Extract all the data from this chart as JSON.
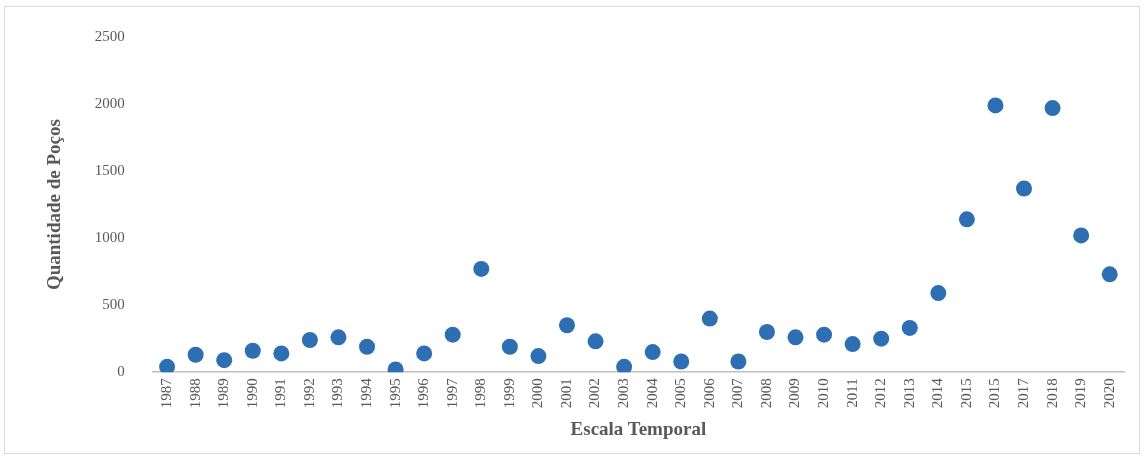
{
  "chart_data": {
    "type": "scatter",
    "xlabel": "Escala Temporal",
    "ylabel": "Quantidade de Poços",
    "categories": [
      "1987",
      "1988",
      "1989",
      "1990",
      "1991",
      "1992",
      "1993",
      "1994",
      "1995",
      "1996",
      "1997",
      "1998",
      "1999",
      "2000",
      "2001",
      "2002",
      "2003",
      "2004",
      "2005",
      "2006",
      "2007",
      "2008",
      "2009",
      "2010",
      "2011",
      "2012",
      "2013",
      "2014",
      "2015",
      "2015",
      "2017",
      "2018",
      "2019",
      "2020"
    ],
    "series": [
      {
        "color": "#2e6fb4",
        "values": [
          40,
          130,
          90,
          160,
          140,
          240,
          260,
          190,
          20,
          140,
          280,
          770,
          190,
          120,
          350,
          230,
          40,
          150,
          80,
          400,
          80,
          300,
          260,
          280,
          210,
          250,
          330,
          590,
          1140,
          1990,
          1370,
          1970,
          1020,
          730
        ]
      }
    ],
    "ylim": [
      0,
      2500
    ],
    "yticks": [
      0,
      500,
      1000,
      1500,
      2000,
      2500
    ],
    "grid": false,
    "legend": false,
    "marker": "circle"
  }
}
